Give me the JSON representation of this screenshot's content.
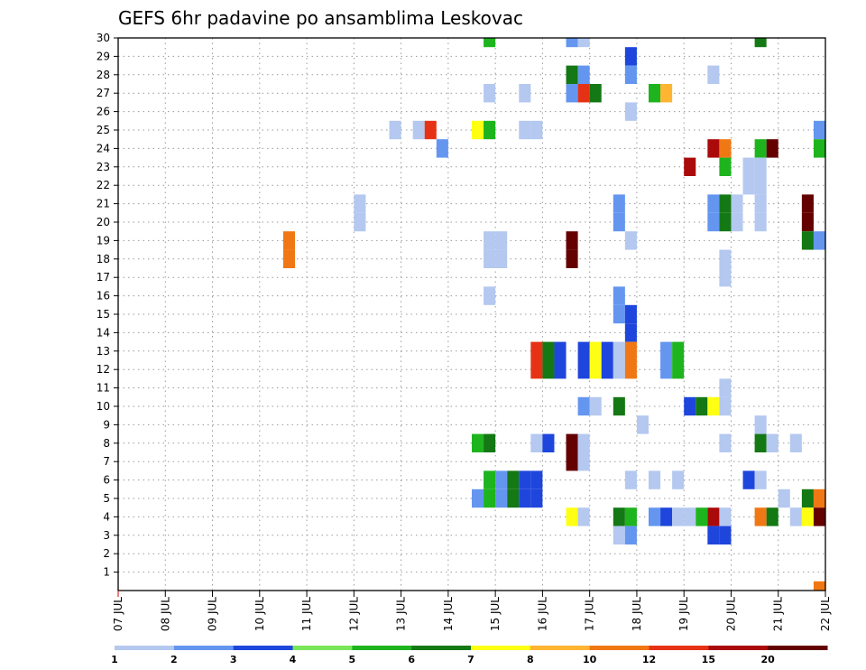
{
  "chart_data": {
    "type": "heatmap",
    "title": "GEFS 6hr padavine po ansamblima Leskovac",
    "xlabel": "",
    "ylabel": "",
    "x_tick_labels": [
      "07 JUL",
      "08 JUL",
      "09 JUL",
      "10 JUL",
      "11 JUL",
      "12 JUL",
      "13 JUL",
      "14 JUL",
      "15 JUL",
      "16 JUL",
      "17 JUL",
      "18 JUL",
      "19 JUL",
      "20 JUL",
      "21 JUL",
      "22 JUL"
    ],
    "y_tick_labels": [
      "1",
      "2",
      "3",
      "4",
      "5",
      "6",
      "7",
      "8",
      "9",
      "10",
      "11",
      "12",
      "13",
      "14",
      "15",
      "16",
      "17",
      "18",
      "19",
      "20",
      "21",
      "22",
      "23",
      "24",
      "25",
      "26",
      "27",
      "28",
      "29",
      "30"
    ],
    "xlim": [
      "07 JUL",
      "22 JUL"
    ],
    "ylim": [
      0,
      30
    ],
    "time_step_hours": 6,
    "grid": "dotted",
    "legend_position": "bottom",
    "color_levels": [
      1,
      2,
      3,
      4,
      5,
      6,
      7,
      8,
      10,
      12,
      15,
      20
    ],
    "colors": [
      "#b4c8f0",
      "#6496f0",
      "#1e46dc",
      "#78e65a",
      "#1eb41e",
      "#147814",
      "#ffff14",
      "#ffb432",
      "#f07814",
      "#e63214",
      "#aa0a0a",
      "#640000"
    ],
    "cells": [
      {
        "member": 30,
        "t": 31,
        "level": 5
      },
      {
        "member": 30,
        "t": 38,
        "level": 2
      },
      {
        "member": 30,
        "t": 39,
        "level": 1
      },
      {
        "member": 30,
        "t": 54,
        "level": 6
      },
      {
        "member": 29,
        "t": 43,
        "level": 3
      },
      {
        "member": 28,
        "t": 38,
        "level": 6
      },
      {
        "member": 28,
        "t": 39,
        "level": 2
      },
      {
        "member": 28,
        "t": 43,
        "level": 2
      },
      {
        "member": 28,
        "t": 50,
        "level": 1
      },
      {
        "member": 27,
        "t": 31,
        "level": 1
      },
      {
        "member": 27,
        "t": 34,
        "level": 1
      },
      {
        "member": 27,
        "t": 38,
        "level": 2
      },
      {
        "member": 27,
        "t": 39,
        "level": 12
      },
      {
        "member": 27,
        "t": 40,
        "level": 6
      },
      {
        "member": 27,
        "t": 45,
        "level": 5
      },
      {
        "member": 27,
        "t": 46,
        "level": 8
      },
      {
        "member": 26,
        "t": 43,
        "level": 1
      },
      {
        "member": 25,
        "t": 23,
        "level": 1
      },
      {
        "member": 25,
        "t": 25,
        "level": 1
      },
      {
        "member": 25,
        "t": 26,
        "level": 12
      },
      {
        "member": 25,
        "t": 30,
        "level": 7
      },
      {
        "member": 25,
        "t": 31,
        "level": 5
      },
      {
        "member": 25,
        "t": 34,
        "level": 1
      },
      {
        "member": 25,
        "t": 35,
        "level": 1
      },
      {
        "member": 25,
        "t": 59,
        "level": 2
      },
      {
        "member": 24,
        "t": 27,
        "level": 2
      },
      {
        "member": 24,
        "t": 50,
        "level": 15
      },
      {
        "member": 24,
        "t": 51,
        "level": 10
      },
      {
        "member": 24,
        "t": 54,
        "level": 5
      },
      {
        "member": 24,
        "t": 55,
        "level": 20
      },
      {
        "member": 24,
        "t": 59,
        "level": 5
      },
      {
        "member": 23,
        "t": 48,
        "level": 15
      },
      {
        "member": 23,
        "t": 51,
        "level": 5
      },
      {
        "member": 23,
        "t": 53,
        "level": 1
      },
      {
        "member": 23,
        "t": 54,
        "level": 1
      },
      {
        "member": 22,
        "t": 53,
        "level": 1
      },
      {
        "member": 22,
        "t": 54,
        "level": 1
      },
      {
        "member": 21,
        "t": 20,
        "level": 1
      },
      {
        "member": 21,
        "t": 42,
        "level": 2
      },
      {
        "member": 21,
        "t": 50,
        "level": 2
      },
      {
        "member": 21,
        "t": 51,
        "level": 6
      },
      {
        "member": 21,
        "t": 52,
        "level": 1
      },
      {
        "member": 21,
        "t": 54,
        "level": 1
      },
      {
        "member": 21,
        "t": 58,
        "level": 20
      },
      {
        "member": 20,
        "t": 20,
        "level": 1
      },
      {
        "member": 20,
        "t": 42,
        "level": 2
      },
      {
        "member": 20,
        "t": 50,
        "level": 2
      },
      {
        "member": 20,
        "t": 51,
        "level": 6
      },
      {
        "member": 20,
        "t": 52,
        "level": 1
      },
      {
        "member": 20,
        "t": 54,
        "level": 1
      },
      {
        "member": 20,
        "t": 58,
        "level": 20
      },
      {
        "member": 19,
        "t": 14,
        "level": 10
      },
      {
        "member": 19,
        "t": 31,
        "level": 1
      },
      {
        "member": 19,
        "t": 32,
        "level": 1
      },
      {
        "member": 19,
        "t": 38,
        "level": 20
      },
      {
        "member": 19,
        "t": 43,
        "level": 1
      },
      {
        "member": 19,
        "t": 58,
        "level": 6
      },
      {
        "member": 19,
        "t": 59,
        "level": 2
      },
      {
        "member": 18,
        "t": 14,
        "level": 10
      },
      {
        "member": 18,
        "t": 31,
        "level": 1
      },
      {
        "member": 18,
        "t": 32,
        "level": 1
      },
      {
        "member": 18,
        "t": 38,
        "level": 20
      },
      {
        "member": 18,
        "t": 51,
        "level": 1
      },
      {
        "member": 17,
        "t": 51,
        "level": 1
      },
      {
        "member": 16,
        "t": 31,
        "level": 1
      },
      {
        "member": 16,
        "t": 42,
        "level": 2
      },
      {
        "member": 15,
        "t": 42,
        "level": 2
      },
      {
        "member": 15,
        "t": 43,
        "level": 3
      },
      {
        "member": 14,
        "t": 43,
        "level": 3
      },
      {
        "member": 13,
        "t": 35,
        "level": 12
      },
      {
        "member": 13,
        "t": 36,
        "level": 6
      },
      {
        "member": 13,
        "t": 37,
        "level": 3
      },
      {
        "member": 13,
        "t": 39,
        "level": 3
      },
      {
        "member": 13,
        "t": 40,
        "level": 7
      },
      {
        "member": 13,
        "t": 41,
        "level": 3
      },
      {
        "member": 13,
        "t": 42,
        "level": 1
      },
      {
        "member": 13,
        "t": 43,
        "level": 10
      },
      {
        "member": 13,
        "t": 46,
        "level": 2
      },
      {
        "member": 13,
        "t": 47,
        "level": 5
      },
      {
        "member": 12,
        "t": 35,
        "level": 12
      },
      {
        "member": 12,
        "t": 36,
        "level": 6
      },
      {
        "member": 12,
        "t": 37,
        "level": 3
      },
      {
        "member": 12,
        "t": 39,
        "level": 3
      },
      {
        "member": 12,
        "t": 40,
        "level": 7
      },
      {
        "member": 12,
        "t": 41,
        "level": 3
      },
      {
        "member": 12,
        "t": 42,
        "level": 1
      },
      {
        "member": 12,
        "t": 43,
        "level": 10
      },
      {
        "member": 12,
        "t": 46,
        "level": 2
      },
      {
        "member": 12,
        "t": 47,
        "level": 5
      },
      {
        "member": 11,
        "t": 51,
        "level": 1
      },
      {
        "member": 10,
        "t": 51,
        "level": 1
      },
      {
        "member": 10,
        "t": 39,
        "level": 2
      },
      {
        "member": 10,
        "t": 40,
        "level": 1
      },
      {
        "member": 10,
        "t": 42,
        "level": 6
      },
      {
        "member": 10,
        "t": 48,
        "level": 3
      },
      {
        "member": 10,
        "t": 49,
        "level": 6
      },
      {
        "member": 10,
        "t": 50,
        "level": 7
      },
      {
        "member": 9,
        "t": 44,
        "level": 1
      },
      {
        "member": 9,
        "t": 54,
        "level": 1
      },
      {
        "member": 8,
        "t": 30,
        "level": 5
      },
      {
        "member": 8,
        "t": 31,
        "level": 6
      },
      {
        "member": 8,
        "t": 35,
        "level": 1
      },
      {
        "member": 8,
        "t": 36,
        "level": 3
      },
      {
        "member": 8,
        "t": 38,
        "level": 20
      },
      {
        "member": 8,
        "t": 39,
        "level": 1
      },
      {
        "member": 8,
        "t": 51,
        "level": 1
      },
      {
        "member": 8,
        "t": 54,
        "level": 6
      },
      {
        "member": 8,
        "t": 55,
        "level": 1
      },
      {
        "member": 8,
        "t": 57,
        "level": 1
      },
      {
        "member": 7,
        "t": 38,
        "level": 20
      },
      {
        "member": 7,
        "t": 39,
        "level": 1
      },
      {
        "member": 6,
        "t": 31,
        "level": 5
      },
      {
        "member": 6,
        "t": 32,
        "level": 2
      },
      {
        "member": 6,
        "t": 33,
        "level": 6
      },
      {
        "member": 6,
        "t": 34,
        "level": 3
      },
      {
        "member": 6,
        "t": 35,
        "level": 3
      },
      {
        "member": 6,
        "t": 43,
        "level": 1
      },
      {
        "member": 6,
        "t": 45,
        "level": 1
      },
      {
        "member": 6,
        "t": 47,
        "level": 1
      },
      {
        "member": 6,
        "t": 53,
        "level": 3
      },
      {
        "member": 6,
        "t": 54,
        "level": 1
      },
      {
        "member": 5,
        "t": 30,
        "level": 2
      },
      {
        "member": 5,
        "t": 31,
        "level": 5
      },
      {
        "member": 5,
        "t": 32,
        "level": 2
      },
      {
        "member": 5,
        "t": 33,
        "level": 6
      },
      {
        "member": 5,
        "t": 34,
        "level": 3
      },
      {
        "member": 5,
        "t": 35,
        "level": 3
      },
      {
        "member": 5,
        "t": 56,
        "level": 1
      },
      {
        "member": 5,
        "t": 58,
        "level": 6
      },
      {
        "member": 5,
        "t": 59,
        "level": 10
      },
      {
        "member": 4,
        "t": 38,
        "level": 7
      },
      {
        "member": 4,
        "t": 39,
        "level": 1
      },
      {
        "member": 4,
        "t": 42,
        "level": 6
      },
      {
        "member": 4,
        "t": 43,
        "level": 5
      },
      {
        "member": 4,
        "t": 45,
        "level": 2
      },
      {
        "member": 4,
        "t": 46,
        "level": 3
      },
      {
        "member": 4,
        "t": 47,
        "level": 1
      },
      {
        "member": 4,
        "t": 48,
        "level": 1
      },
      {
        "member": 4,
        "t": 49,
        "level": 5
      },
      {
        "member": 4,
        "t": 50,
        "level": 15
      },
      {
        "member": 4,
        "t": 51,
        "level": 1
      },
      {
        "member": 4,
        "t": 54,
        "level": 10
      },
      {
        "member": 4,
        "t": 55,
        "level": 6
      },
      {
        "member": 4,
        "t": 57,
        "level": 1
      },
      {
        "member": 4,
        "t": 58,
        "level": 7
      },
      {
        "member": 4,
        "t": 59,
        "level": 20
      },
      {
        "member": 3,
        "t": 42,
        "level": 1
      },
      {
        "member": 3,
        "t": 43,
        "level": 2
      },
      {
        "member": 3,
        "t": 50,
        "level": 3
      },
      {
        "member": 3,
        "t": 51,
        "level": 3
      },
      {
        "member": 0,
        "t": 59,
        "level": 10
      }
    ]
  }
}
